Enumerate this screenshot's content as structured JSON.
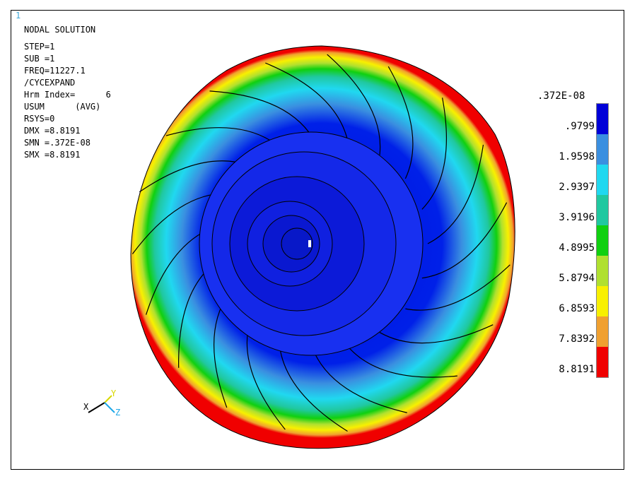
{
  "window_number": "1",
  "info": {
    "title": "NODAL SOLUTION",
    "lines": [
      "STEP=1",
      "SUB =1",
      "FREQ=11227.1",
      "/CYCEXPAND",
      "Hrm Index=      6",
      "USUM      (AVG)",
      "RSYS=0",
      "DMX =8.8191",
      "SMN =.372E-08",
      "SMX =8.8191"
    ]
  },
  "legend": {
    "min_label": ".372E-08",
    "labels": [
      ".9799",
      "1.9598",
      "2.9397",
      "3.9196",
      "4.8995",
      "5.8794",
      "6.8593",
      "7.8392",
      "8.8191"
    ],
    "colors": [
      "#0000d8",
      "#3a8fe0",
      "#20d8f0",
      "#20c8a0",
      "#10d010",
      "#b0e030",
      "#f8f000",
      "#f0a030",
      "#f00000"
    ]
  },
  "triad": {
    "x": "X",
    "y": "Y",
    "z": "Z"
  },
  "colors": {
    "frame": "#000000",
    "triad_y": "#d8d800",
    "triad_z": "#20a8e8",
    "text": "#000000"
  }
}
